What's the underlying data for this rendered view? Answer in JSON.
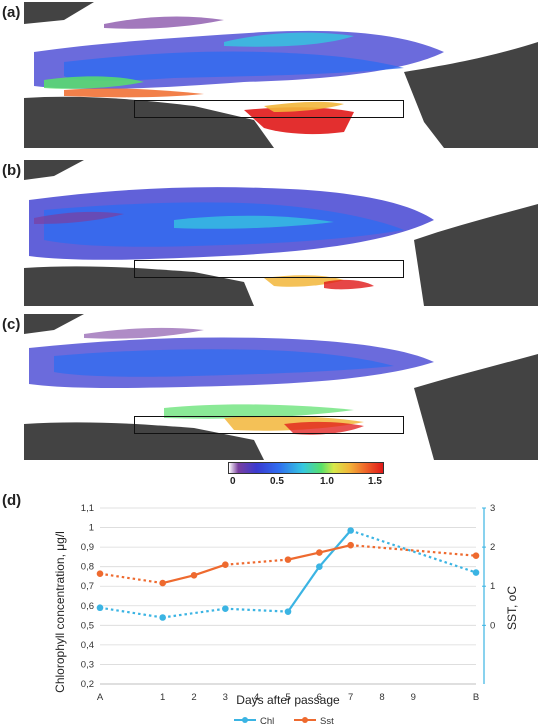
{
  "panels": [
    {
      "label": "(a)"
    },
    {
      "label": "(b)"
    },
    {
      "label": "(c)"
    },
    {
      "label": "(d)"
    }
  ],
  "colorbar": {
    "ticks": [
      "0",
      "0.5",
      "1.0",
      "1.5"
    ],
    "colors": [
      "#ffffff",
      "#7a3fa0",
      "#3a3ad0",
      "#2f6cf0",
      "#35c8e0",
      "#58e06a",
      "#d8e84a",
      "#f2b63a",
      "#f06a2a",
      "#e01818"
    ]
  },
  "map_colors": {
    "land": "#434343",
    "water_mask": "#ffffff"
  },
  "chart_data": {
    "type": "line",
    "categories": [
      "A",
      "1",
      "2",
      "3",
      "4",
      "5",
      "6",
      "7",
      "8",
      "9",
      "B"
    ],
    "x_positions": [
      0,
      2,
      3,
      4,
      5,
      6,
      7,
      8,
      9,
      10,
      12
    ],
    "xlabel": "Days after passage",
    "ylabel_left": "Chlorophyll concentration, μg/l",
    "ylabel_right": "SST, oC",
    "y_left_ticks": [
      "0,2",
      "0,3",
      "0,4",
      "0,5",
      "0,6",
      "0,7",
      "0,8",
      "0,9",
      "1",
      "1,1"
    ],
    "ylim_left": [
      0.2,
      1.1
    ],
    "y_right_ticks": [
      "0",
      "1",
      "2",
      "3"
    ],
    "ylim_right": [
      -1.5,
      3
    ],
    "grid": true,
    "legend_position": "bottom",
    "series": [
      {
        "name": "Chl",
        "color": "#3bb4e3",
        "axis": "left",
        "points": [
          {
            "x": "A",
            "y": 0.59
          },
          {
            "x": "1",
            "y": 0.54
          },
          {
            "x": "3",
            "y": 0.585
          },
          {
            "x": "5",
            "y": 0.57
          },
          {
            "x": "6",
            "y": 0.8
          },
          {
            "x": "7",
            "y": 0.985
          },
          {
            "x": "B",
            "y": 0.77
          }
        ],
        "solid_segments": [
          [
            3,
            4
          ],
          [
            4,
            5
          ]
        ]
      },
      {
        "name": "Sst",
        "color": "#ee6a2f",
        "axis": "right",
        "points": [
          {
            "x": "A",
            "y": 1.32
          },
          {
            "x": "1",
            "y": 1.08
          },
          {
            "x": "2",
            "y": 1.28
          },
          {
            "x": "3",
            "y": 1.55
          },
          {
            "x": "5",
            "y": 1.68
          },
          {
            "x": "6",
            "y": 1.86
          },
          {
            "x": "7",
            "y": 2.05
          },
          {
            "x": "B",
            "y": 1.78
          }
        ],
        "solid_segments": [
          [
            1,
            2
          ],
          [
            2,
            3
          ],
          [
            4,
            5
          ],
          [
            5,
            6
          ]
        ]
      }
    ]
  }
}
